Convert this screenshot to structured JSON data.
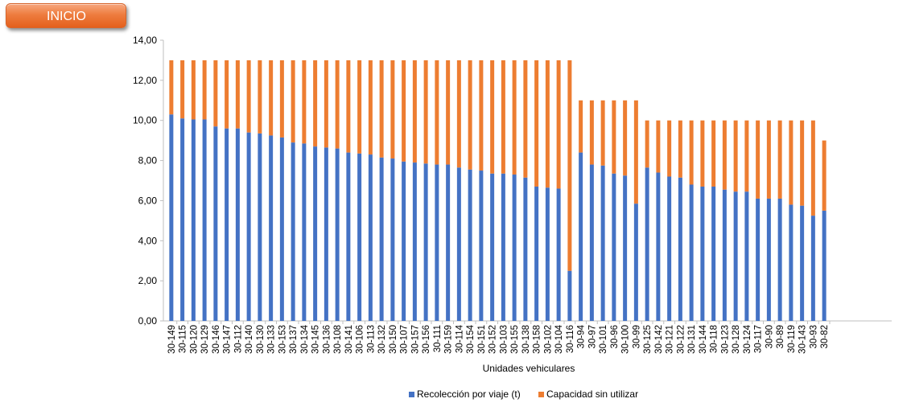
{
  "nav": {
    "inicio_label": "INICIO"
  },
  "chart_data": {
    "type": "bar",
    "stacked": true,
    "xlabel": "Unidades vehiculares",
    "ylabel": "",
    "ylim": [
      0,
      14
    ],
    "y_ticks": [
      "0,00",
      "2,00",
      "4,00",
      "6,00",
      "8,00",
      "10,00",
      "12,00",
      "14,00"
    ],
    "grid": false,
    "legend_position": "bottom",
    "categories": [
      "30-149",
      "30-115",
      "30-120",
      "30-129",
      "30-146",
      "30-147",
      "30-112",
      "30-140",
      "30-130",
      "30-133",
      "30-153",
      "30-137",
      "30-134",
      "30-145",
      "30-136",
      "30-108",
      "30-141",
      "30-106",
      "30-113",
      "30-132",
      "30-150",
      "30-107",
      "30-157",
      "30-156",
      "30-111",
      "30-159",
      "30-114",
      "30-154",
      "30-151",
      "30-152",
      "30-103",
      "30-155",
      "30-138",
      "30-158",
      "30-102",
      "30-104",
      "30-116",
      "30-94",
      "30-97",
      "30-101",
      "30-96",
      "30-100",
      "30-99",
      "30-125",
      "30-142",
      "30-121",
      "30-122",
      "30-131",
      "30-144",
      "30-118",
      "30-123",
      "30-128",
      "30-124",
      "30-117",
      "30-90",
      "30-89",
      "30-119",
      "30-143",
      "30-93",
      "30-82"
    ],
    "series": [
      {
        "name": "Recolección por viaje (t)",
        "color": "#4472c4",
        "values": [
          10.3,
          10.1,
          10.05,
          10.05,
          9.7,
          9.6,
          9.6,
          9.4,
          9.35,
          9.25,
          9.15,
          8.9,
          8.85,
          8.7,
          8.65,
          8.6,
          8.4,
          8.35,
          8.3,
          8.15,
          8.1,
          7.95,
          7.9,
          7.85,
          7.8,
          7.8,
          7.65,
          7.55,
          7.5,
          7.35,
          7.35,
          7.3,
          7.15,
          6.7,
          6.65,
          6.6,
          2.5,
          8.4,
          7.8,
          7.75,
          7.35,
          7.25,
          5.85,
          7.65,
          7.4,
          7.2,
          7.15,
          6.8,
          6.7,
          6.7,
          6.55,
          6.45,
          6.45,
          6.1,
          6.1,
          6.1,
          5.8,
          5.75,
          5.25,
          5.5
        ]
      },
      {
        "name": "Capacidad sin utilizar",
        "color": "#ed7d31",
        "values": [
          2.7,
          2.9,
          2.95,
          2.95,
          3.3,
          3.4,
          3.4,
          3.6,
          3.65,
          3.75,
          3.85,
          4.1,
          4.15,
          4.3,
          4.35,
          4.4,
          4.6,
          4.65,
          4.7,
          4.85,
          4.9,
          5.05,
          5.1,
          5.15,
          5.2,
          5.2,
          5.35,
          5.45,
          5.5,
          5.65,
          5.65,
          5.7,
          5.85,
          6.3,
          6.35,
          6.4,
          10.5,
          2.6,
          3.2,
          3.25,
          3.65,
          3.75,
          5.15,
          2.35,
          2.6,
          2.8,
          2.85,
          3.2,
          3.3,
          3.3,
          3.45,
          3.55,
          3.55,
          3.9,
          3.9,
          3.9,
          4.2,
          4.25,
          4.75,
          3.5
        ]
      }
    ]
  }
}
